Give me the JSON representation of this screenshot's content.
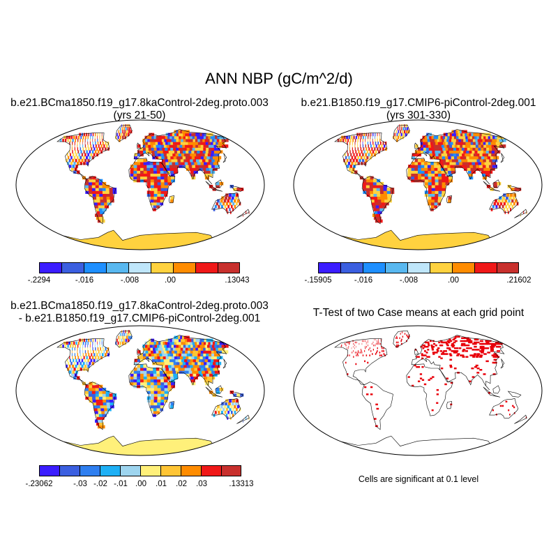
{
  "figure": {
    "title": "ANN NBP (gC/m^2/d)"
  },
  "panels": [
    {
      "id": "case1",
      "title_line1": "b.e21.BCma1850.f19_g17.8kaControl-2deg.proto.003",
      "title_line2": "(yrs 21-50)",
      "colorbar": {
        "colors": [
          "#3b1dff",
          "#3b5fe0",
          "#1e8fff",
          "#59b8f0",
          "#bfe6fa",
          "#ffd23f",
          "#ff8c00",
          "#f01818",
          "#c8302d"
        ],
        "labels": [
          "-.2294",
          "-.016",
          "-.008",
          ".00",
          ".13043"
        ]
      }
    },
    {
      "id": "case2",
      "title_line1": "b.e21.B1850.f19_g17.CMIP6-piControl-2deg.001",
      "title_line2": "(yrs 301-330)",
      "colorbar": {
        "colors": [
          "#3b1dff",
          "#3b5fe0",
          "#1e8fff",
          "#59b8f0",
          "#bfe6fa",
          "#ffd23f",
          "#ff8c00",
          "#f01818",
          "#c8302d"
        ],
        "labels": [
          "-.15905",
          "-.016",
          "-.008",
          ".00",
          ".21602"
        ]
      }
    },
    {
      "id": "difference",
      "title_line1": "b.e21.BCma1850.f19_g17.8kaControl-2deg.proto.003",
      "title_line2": "- b.e21.B1850.f19_g17.CMIP6-piControl-2deg.001",
      "colorbar": {
        "colors": [
          "#3b1dff",
          "#3b5fe0",
          "#2f7ff0",
          "#1eb0f5",
          "#9ed5ef",
          "#fff07a",
          "#ffc535",
          "#ff8c00",
          "#f01818",
          "#c8302d"
        ],
        "labels": [
          "-.23062",
          "-.03",
          "-.02",
          "-.01",
          ".00",
          ".01",
          ".02",
          ".03",
          ".13313"
        ]
      }
    },
    {
      "id": "ttest",
      "title_line1": "T-Test of two Case means at each grid point",
      "title_line2": "",
      "footnote": "Cells are significant at 0.1 level"
    }
  ]
}
